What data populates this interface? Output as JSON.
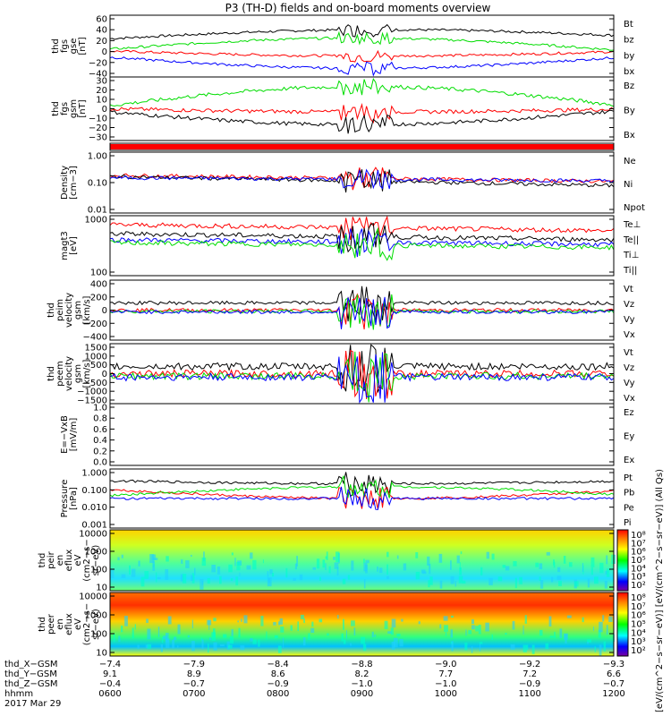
{
  "title": "P3 (TH-D) fields and on-board moments overview",
  "colors": {
    "black": "#000000",
    "red": "#ff0000",
    "green": "#00dd00",
    "blue": "#0000ff",
    "bar": "#ff0000"
  },
  "chart_data": [
    {
      "type": "line",
      "ylabel": [
        "thd",
        "fgs",
        "gse",
        "[nT]"
      ],
      "yticks": [
        "60",
        "40",
        "20",
        "0",
        "−20",
        "−40"
      ],
      "legend": [
        {
          "name": "Bt",
          "color": "black"
        },
        {
          "name": "bz",
          "color": "red"
        },
        {
          "name": "by",
          "color": "green"
        },
        {
          "name": "bx",
          "color": "blue"
        }
      ]
    },
    {
      "type": "line",
      "ylabel": [
        "thd",
        "fgs",
        "gsm",
        "[nT]"
      ],
      "yticks": [
        "30",
        "20",
        "10",
        "0",
        "−10",
        "−20",
        "−30"
      ],
      "legend": [
        {
          "name": "Bz",
          "color": "red"
        },
        {
          "name": "By",
          "color": "green"
        },
        {
          "name": "Bx",
          "color": "black"
        }
      ]
    },
    {
      "type": "bar",
      "ylabel": [],
      "yticks": [],
      "legend": []
    },
    {
      "type": "line",
      "ylabel": [
        "Density",
        "[cm−3]"
      ],
      "yticks": [
        "1.00",
        "0.10",
        "0.01"
      ],
      "legend": [
        {
          "name": "Ne",
          "color": "red"
        },
        {
          "name": "Ni",
          "color": "black"
        },
        {
          "name": "Npot",
          "color": "blue"
        }
      ]
    },
    {
      "type": "line",
      "ylabel": [
        "magt3",
        "[eV]"
      ],
      "yticks": [
        "1000",
        "100"
      ],
      "legend": [
        {
          "name": "Te⊥",
          "color": "red"
        },
        {
          "name": "Te||",
          "color": "black"
        },
        {
          "name": "Ti⊥",
          "color": "blue"
        },
        {
          "name": "Ti||",
          "color": "green"
        }
      ]
    },
    {
      "type": "line",
      "ylabel": [
        "thd",
        "peim",
        "velocity",
        "gsm",
        "[km/s]"
      ],
      "yticks": [
        "400",
        "200",
        "0",
        "−200",
        "−400"
      ],
      "legend": [
        {
          "name": "Vt",
          "color": "black"
        },
        {
          "name": "Vz",
          "color": "red"
        },
        {
          "name": "Vy",
          "color": "green"
        },
        {
          "name": "Vx",
          "color": "blue"
        }
      ]
    },
    {
      "type": "line",
      "ylabel": [
        "thd",
        "peem",
        "velocity",
        "gsm",
        "[km/s]"
      ],
      "yticks": [
        "1500",
        "1000",
        "500",
        "0",
        "−500",
        "−1000",
        "−1500"
      ],
      "legend": [
        {
          "name": "Vt",
          "color": "black"
        },
        {
          "name": "Vz",
          "color": "red"
        },
        {
          "name": "Vy",
          "color": "green"
        },
        {
          "name": "Vx",
          "color": "blue"
        }
      ]
    },
    {
      "type": "line",
      "ylabel": [
        "E=−VxB",
        "[mV/m]"
      ],
      "yticks": [
        "1.0",
        "0.8",
        "0.6",
        "0.4",
        "0.2",
        "0.0"
      ],
      "legend": [
        {
          "name": "Ez",
          "color": "red"
        },
        {
          "name": "Ey",
          "color": "green"
        },
        {
          "name": "Ex",
          "color": "blue"
        }
      ]
    },
    {
      "type": "line",
      "ylabel": [
        "Pressure",
        "[nPa]"
      ],
      "yticks": [
        "1.000",
        "0.100",
        "0.010",
        "0.001"
      ],
      "legend": [
        {
          "name": "Pt",
          "color": "black"
        },
        {
          "name": "Pb",
          "color": "red"
        },
        {
          "name": "Pe",
          "color": "green"
        },
        {
          "name": "Pi",
          "color": "blue"
        }
      ]
    },
    {
      "type": "heatmap",
      "ylabel": [
        "thd",
        "peir",
        "en",
        "eflux",
        "eV",
        "(cm2−s−",
        "sr−eV)"
      ],
      "yticks": [
        "10000",
        "1000",
        "100",
        "10"
      ],
      "legend": []
    },
    {
      "type": "heatmap",
      "ylabel": [
        "thd",
        "peer",
        "en",
        "eflux",
        "eV",
        "(cm2−s−",
        "sr−eV)"
      ],
      "yticks": [
        "10000",
        "1000",
        "100",
        "10"
      ],
      "legend": []
    }
  ],
  "colorbar1": {
    "ticks": [
      "10⁸",
      "10⁷",
      "10⁶",
      "10⁵",
      "10⁴",
      "10³",
      "10²"
    ]
  },
  "colorbar2": {
    "ticks": [
      "10⁸",
      "10⁷",
      "10⁶",
      "10⁵",
      "10⁴",
      "10³",
      "10²"
    ]
  },
  "colorbar_label": "[eV/(cm^2−s−sr−eV)]   [eV/(cm^2−s−sr−eV)] (All Qs)",
  "xaxis": {
    "rows": [
      {
        "label": "thd_X−GSM",
        "values": [
          "−7.4",
          "−7.9",
          "−8.4",
          "−8.8",
          "−9.0",
          "−9.2",
          "−9.3"
        ]
      },
      {
        "label": "thd_Y−GSM",
        "values": [
          "9.1",
          "8.9",
          "8.6",
          "8.2",
          "7.7",
          "7.2",
          "6.6"
        ]
      },
      {
        "label": "thd_Z−GSM",
        "values": [
          "−0.4",
          "−0.7",
          "−0.9",
          "−1.0",
          "−1.0",
          "−0.9",
          "−0.7"
        ]
      },
      {
        "label": "hhmm",
        "values": [
          "0600",
          "0700",
          "0800",
          "0900",
          "1000",
          "1100",
          "1200"
        ]
      }
    ],
    "date": "2017 Mar 29"
  }
}
